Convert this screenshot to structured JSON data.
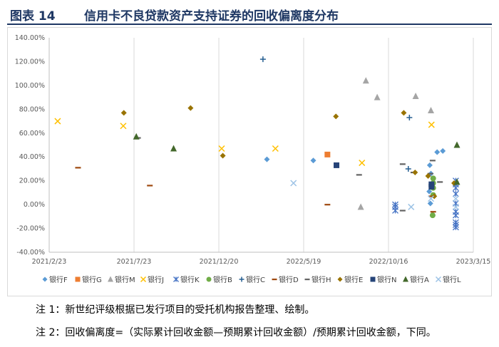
{
  "figure": {
    "number": "图表 14",
    "title": "信用卡不良贷款资产支持证券的回收偏离度分布"
  },
  "notes": {
    "note1": "注 1：新世纪评级根据已发行项目的受托机构报告整理、绘制。",
    "note2": "注 2：回收偏离度=（实际累计回收金额—预期累计回收金额）/预期累计回收金额，下同。"
  },
  "chart_data": {
    "type": "scatter",
    "x_ticks": [
      "2021/2/23",
      "2021/7/23",
      "2021/12/20",
      "2022/5/19",
      "2022/10/16",
      "2023/3/15"
    ],
    "xlim": [
      "2021/2/23",
      "2023/3/15"
    ],
    "y_ticks": [
      "-40.00%",
      "-20.00%",
      "0.00%",
      "20.00%",
      "40.00%",
      "60.00%",
      "80.00%",
      "100.00%",
      "120.00%",
      "140.00%"
    ],
    "ylim": [
      -40,
      140
    ],
    "grid": "vertical",
    "legend_position": "bottom",
    "series": [
      {
        "name": "银行F",
        "marker": "diamond",
        "color": "#5b9bd5",
        "points": [
          [
            "2022/3/15",
            38
          ],
          [
            "2022/6/5",
            37
          ],
          [
            "2023/1/10",
            44
          ],
          [
            "2023/1/20",
            45
          ],
          [
            "2022/12/28",
            33
          ],
          [
            "2022/12/30",
            26
          ],
          [
            "2022/12/27",
            11
          ],
          [
            "2022/12/29",
            1
          ]
        ]
      },
      {
        "name": "银行G",
        "marker": "square",
        "color": "#ed7d31",
        "points": [
          [
            "2022/6/30",
            42
          ]
        ]
      },
      {
        "name": "银行M",
        "marker": "triangle",
        "color": "#a5a5a5",
        "points": [
          [
            "2022/9/6",
            104
          ],
          [
            "2022/9/26",
            90
          ],
          [
            "2022/12/3",
            91
          ],
          [
            "2022/12/30",
            79
          ],
          [
            "2022/8/28",
            -2
          ]
        ]
      },
      {
        "name": "银行J",
        "marker": "x",
        "color": "#ffc000",
        "points": [
          [
            "2021/3/10",
            70
          ],
          [
            "2021/7/4",
            66
          ],
          [
            "2021/12/25",
            47
          ],
          [
            "2022/3/30",
            47
          ],
          [
            "2022/8/30",
            35
          ],
          [
            "2022/12/31",
            67
          ]
        ]
      },
      {
        "name": "银行K",
        "marker": "star",
        "color": "#4472c4",
        "points": [
          [
            "2022/10/28",
            0
          ],
          [
            "2022/10/28",
            -2
          ],
          [
            "2022/10/28",
            -5
          ],
          [
            "2023/2/12",
            20
          ],
          [
            "2023/2/12",
            17
          ],
          [
            "2023/2/12",
            14
          ],
          [
            "2023/2/12",
            9
          ],
          [
            "2023/2/12",
            1
          ],
          [
            "2023/2/12",
            -6
          ],
          [
            "2023/2/12",
            -9
          ],
          [
            "2023/2/12",
            -15
          ],
          [
            "2023/2/12",
            -17
          ],
          [
            "2023/2/12",
            -19
          ]
        ]
      },
      {
        "name": "银行B",
        "marker": "circle",
        "color": "#70ad47",
        "points": [
          [
            "2023/1/3",
            22
          ],
          [
            "2023/1/3",
            18
          ],
          [
            "2023/1/3",
            14
          ],
          [
            "2023/1/3",
            8
          ],
          [
            "2023/1/2",
            -9
          ]
        ]
      },
      {
        "name": "银行C",
        "marker": "plus",
        "color": "#255e91",
        "points": [
          [
            "2022/3/8",
            122
          ],
          [
            "2022/11/22",
            73
          ],
          [
            "2022/11/20",
            30
          ]
        ]
      },
      {
        "name": "银行D",
        "marker": "dash",
        "color": "#9e480e",
        "points": [
          [
            "2021/4/15",
            31
          ],
          [
            "2021/8/20",
            16
          ],
          [
            "2022/6/30",
            0
          ],
          [
            "2023/1/3",
            -6
          ],
          [
            "2022/12/31",
            7
          ]
        ]
      },
      {
        "name": "银行H",
        "marker": "dash",
        "color": "#636363",
        "points": [
          [
            "2021/7/30",
            56
          ],
          [
            "2022/8/25",
            25
          ],
          [
            "2022/11/10",
            34
          ],
          [
            "2022/12/29",
            26
          ],
          [
            "2023/1/2",
            37
          ],
          [
            "2022/11/10",
            -5
          ],
          [
            "2022/11/29",
            27
          ],
          [
            "2023/1/15",
            19
          ]
        ]
      },
      {
        "name": "银行E",
        "marker": "diamond",
        "color": "#997300",
        "points": [
          [
            "2021/7/5",
            77
          ],
          [
            "2021/10/31",
            81
          ],
          [
            "2021/12/27",
            41
          ],
          [
            "2022/7/15",
            74
          ],
          [
            "2022/11/12",
            77
          ],
          [
            "2022/12/2",
            27
          ],
          [
            "2022/12/25",
            24
          ],
          [
            "2023/1/5",
            7
          ],
          [
            "2023/2/9",
            18
          ]
        ]
      },
      {
        "name": "银行N",
        "marker": "square",
        "color": "#264478",
        "points": [
          [
            "2022/7/16",
            33
          ],
          [
            "2022/12/31",
            17
          ],
          [
            "2022/12/31",
            15
          ]
        ]
      },
      {
        "name": "银行A",
        "marker": "triangle",
        "color": "#43682b",
        "points": [
          [
            "2021/7/27",
            57
          ],
          [
            "2021/10/1",
            47
          ],
          [
            "2023/2/14",
            50
          ],
          [
            "2023/2/14",
            19
          ]
        ]
      },
      {
        "name": "银行L",
        "marker": "x",
        "color": "#9dc3e6",
        "points": [
          [
            "2022/5/1",
            18
          ],
          [
            "2022/11/25",
            -2
          ],
          [
            "2022/12/30",
            5
          ],
          [
            "2023/2/12",
            5
          ],
          [
            "2023/2/12",
            -2
          ]
        ]
      }
    ]
  }
}
